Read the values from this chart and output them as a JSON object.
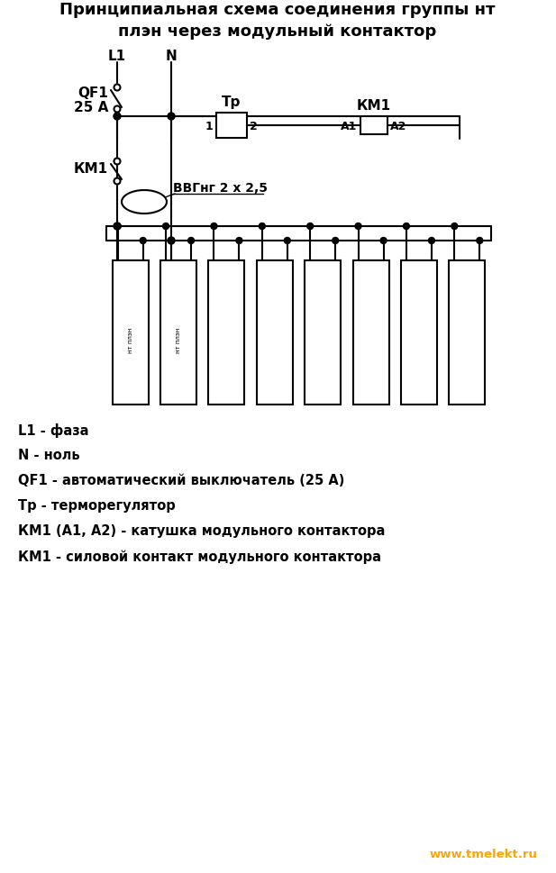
{
  "title": "Принципиальная схема соединения группы нт\nплэн через модульный контактор",
  "title_fontsize": 13,
  "line_color": "#000000",
  "bg_color": "#ffffff",
  "legend_lines": [
    "L1 - фаза",
    "N - ноль",
    "QF1 - автоматический выключатель (25 А)",
    "Тр - терморегулятор",
    "КМ1 (А1, А2) - катушка модульного контактора",
    "КМ1 - силовой контакт модульного контактора"
  ],
  "website": "www.tmelekt.ru",
  "website_color": "#FFA500",
  "num_heaters": 8,
  "labels_nt_plan": [
    "нт плэн",
    "нт плэн"
  ]
}
